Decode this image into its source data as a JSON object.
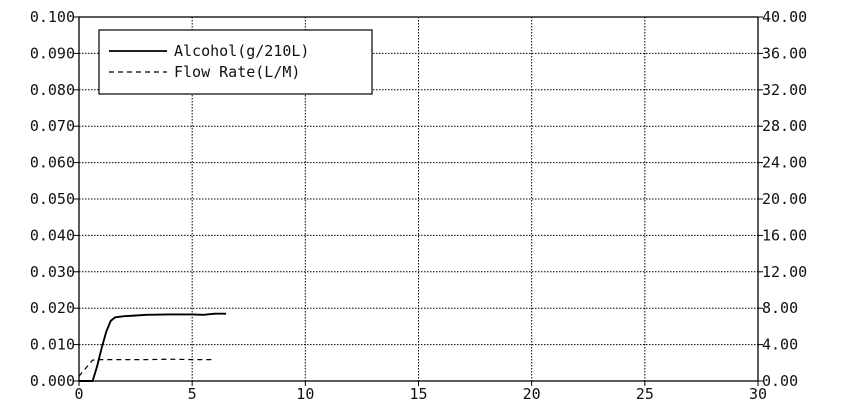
{
  "chart_data": {
    "type": "line",
    "title": "",
    "xlabel": "",
    "ylabel_left": "",
    "ylabel_right": "",
    "xlim": [
      0,
      30
    ],
    "ylim_left": [
      0,
      0.1
    ],
    "ylim_right": [
      0,
      40
    ],
    "x_ticks": [
      "0",
      "5",
      "10",
      "15",
      "20",
      "25",
      "30"
    ],
    "y_left_ticks": [
      "0.000",
      "0.010",
      "0.020",
      "0.030",
      "0.040",
      "0.050",
      "0.060",
      "0.070",
      "0.080",
      "0.090",
      "0.100"
    ],
    "y_right_ticks": [
      "0.00",
      "4.00",
      "8.00",
      "12.00",
      "16.00",
      "20.00",
      "24.00",
      "28.00",
      "32.00",
      "36.00",
      "40.00"
    ],
    "grid": true,
    "legend_position": "top-left",
    "series": [
      {
        "name": "Alcohol(g/210L)",
        "axis": "left",
        "style": "solid",
        "color": "#000000",
        "x": [
          0,
          0.4,
          0.6,
          0.8,
          1.0,
          1.2,
          1.4,
          1.6,
          2.0,
          2.5,
          3.0,
          4.0,
          5.0,
          5.5,
          6.0,
          6.5
        ],
        "y": [
          0.0,
          0.0,
          0.0,
          0.004,
          0.009,
          0.0135,
          0.0165,
          0.0175,
          0.0178,
          0.018,
          0.0182,
          0.0183,
          0.0183,
          0.0182,
          0.0185,
          0.0185
        ]
      },
      {
        "name": "Flow Rate(L/M)",
        "axis": "right",
        "style": "dashed",
        "color": "#000000",
        "x": [
          0,
          0.15,
          0.3,
          0.4,
          0.5,
          0.6,
          1.0,
          2.0,
          3.0,
          4.0,
          5.0,
          6.0
        ],
        "y": [
          0.5,
          1.0,
          1.4,
          1.7,
          2.0,
          2.3,
          2.35,
          2.35,
          2.35,
          2.4,
          2.35,
          2.35
        ]
      }
    ]
  }
}
